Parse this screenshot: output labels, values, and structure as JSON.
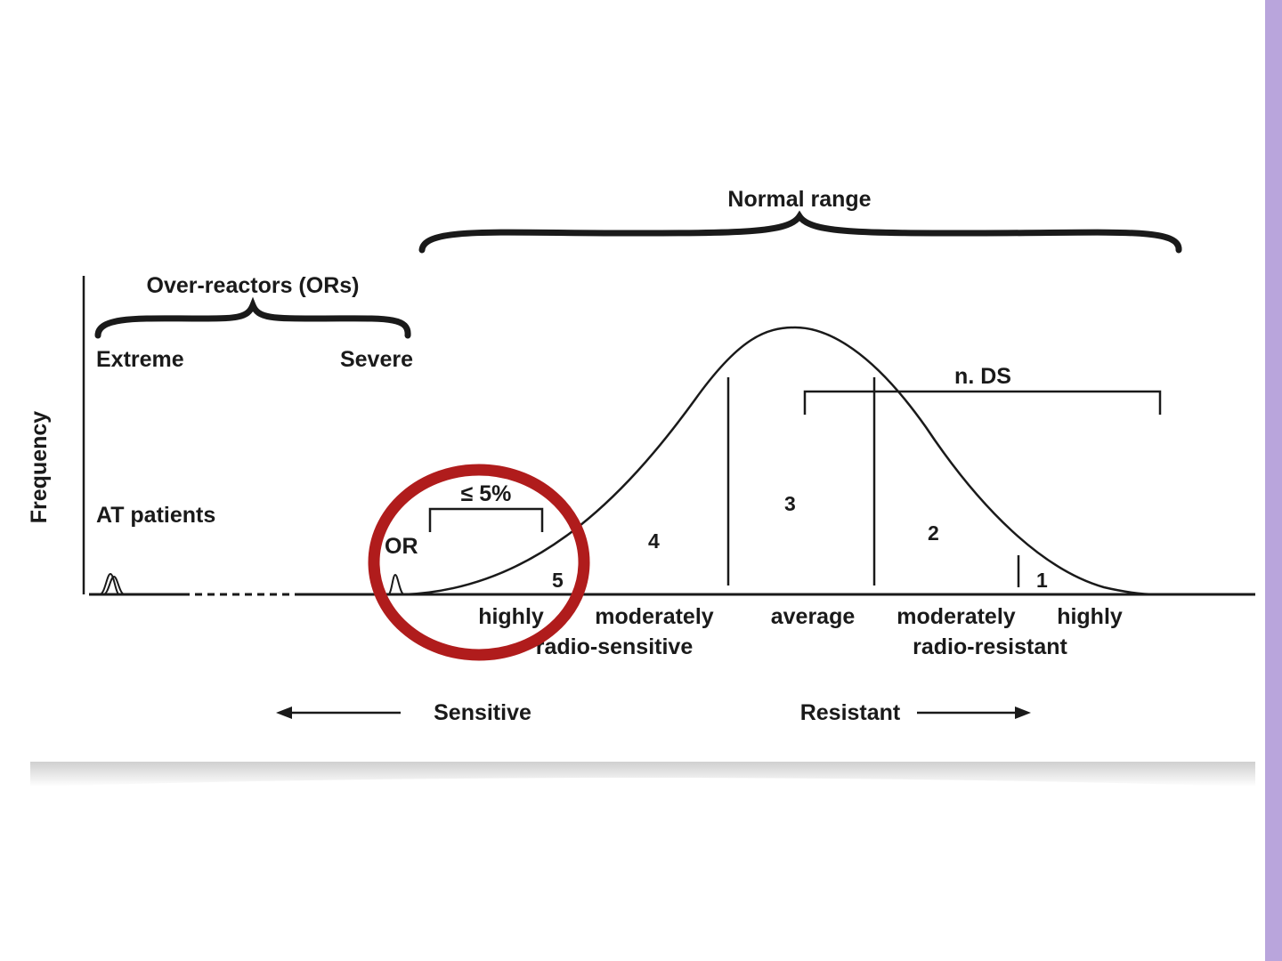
{
  "accent_colors": {
    "sidebar": "#b9a5dc",
    "highlight_circle": "#b01c1c",
    "ink": "#1a1a1a"
  },
  "diagram": {
    "y_axis_label": "Frequency",
    "normal_range_label": "Normal range",
    "over_reactors_label": "Over-reactors (ORs)",
    "extreme_label": "Extreme",
    "severe_label": "Severe",
    "at_patients_label": "AT patients",
    "or_label": "OR",
    "percent_label": "≤ 5%",
    "nds_label": "n. DS",
    "regions": [
      "5",
      "4",
      "3",
      "2",
      "1"
    ],
    "category_labels": {
      "highly_sensitive": "highly",
      "moderately_sensitive": "moderately",
      "sensitive_group": "radio-sensitive",
      "average": "average",
      "moderately_resistant": "moderately",
      "highly_resistant": "highly",
      "resistant_group": "radio-resistant"
    },
    "direction": {
      "sensitive": "Sensitive",
      "resistant": "Resistant"
    }
  }
}
